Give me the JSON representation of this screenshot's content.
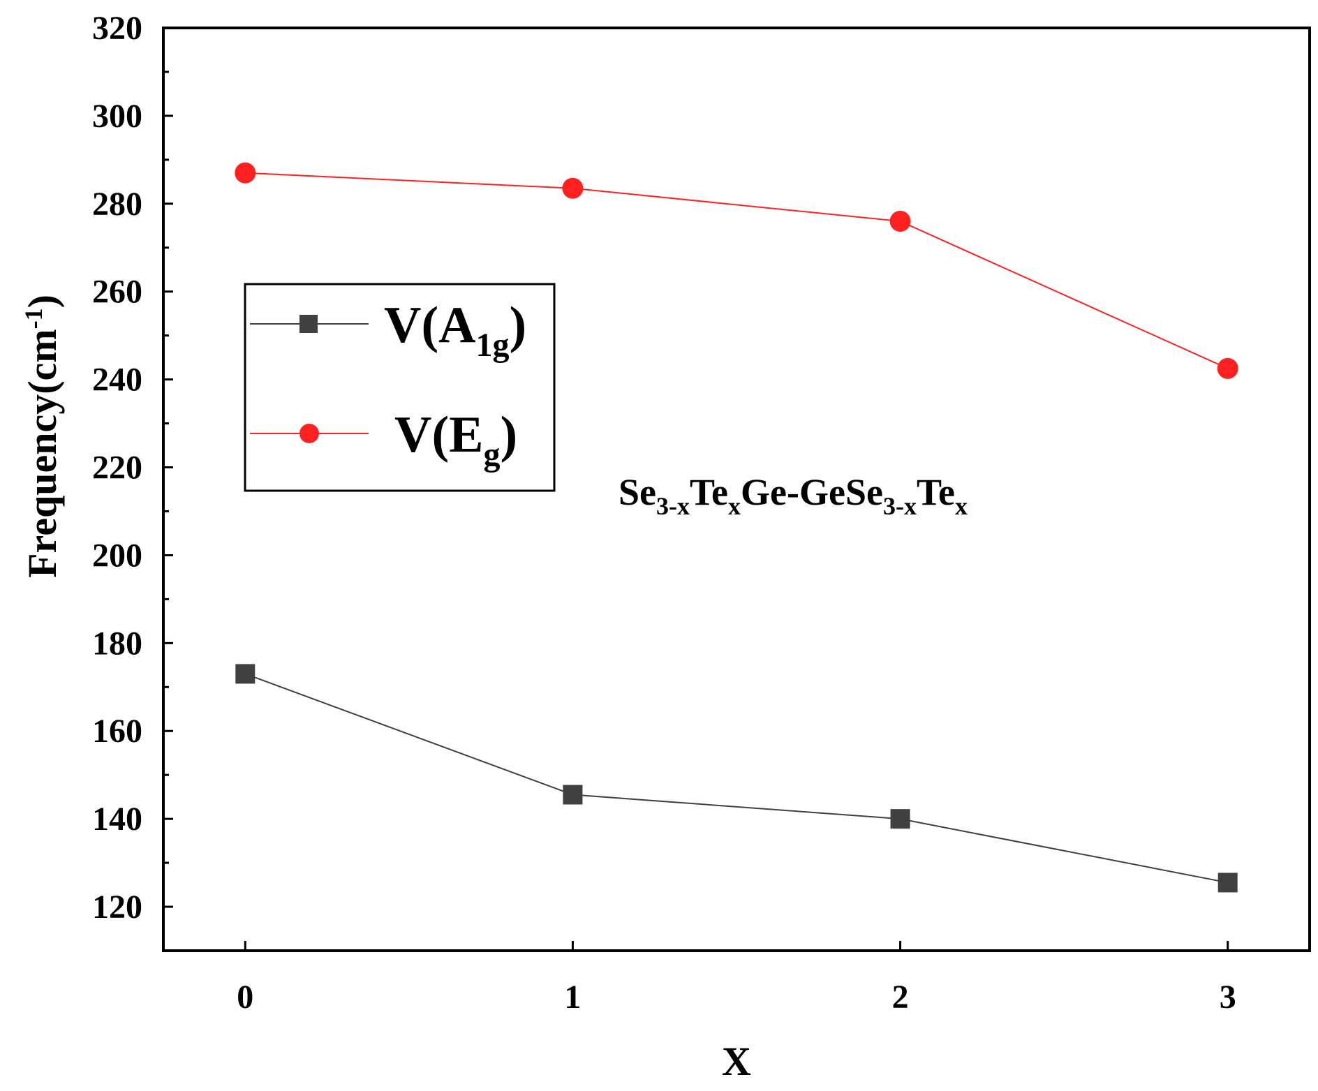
{
  "chart_data": {
    "type": "line",
    "x": [
      0,
      1,
      2,
      3
    ],
    "xlabel": "X",
    "ylabel": {
      "base": "Frequency(cm",
      "sup": "-1",
      "close": ")"
    },
    "xlim": [
      -0.25,
      3.25
    ],
    "ylim": [
      110,
      320
    ],
    "yticks": [
      120,
      140,
      160,
      180,
      200,
      220,
      240,
      260,
      280,
      300,
      320
    ],
    "xticks": [
      0,
      1,
      2,
      3
    ],
    "grid": false,
    "legend_placement": "center-left",
    "series": [
      {
        "name": {
          "base": "V(A",
          "sub": "1g",
          "close": ")"
        },
        "values": [
          173,
          145.5,
          140,
          125.5
        ],
        "color": "#404040",
        "marker": "square"
      },
      {
        "name": {
          "base": "V(E",
          "sub": "g",
          "close": ")"
        },
        "values": [
          287,
          283.5,
          276,
          242.5
        ],
        "color": "#ff2020",
        "marker": "circle"
      }
    ],
    "annotation": {
      "parts": [
        {
          "t": "Se",
          "s": "n"
        },
        {
          "t": "3-x",
          "s": "sub"
        },
        {
          "t": "Te",
          "s": "n"
        },
        {
          "t": "x",
          "s": "sub"
        },
        {
          "t": "Ge-GeSe",
          "s": "n"
        },
        {
          "t": "3-x",
          "s": "sub"
        },
        {
          "t": "Te",
          "s": "n"
        },
        {
          "t": "x",
          "s": "sub"
        }
      ]
    }
  }
}
